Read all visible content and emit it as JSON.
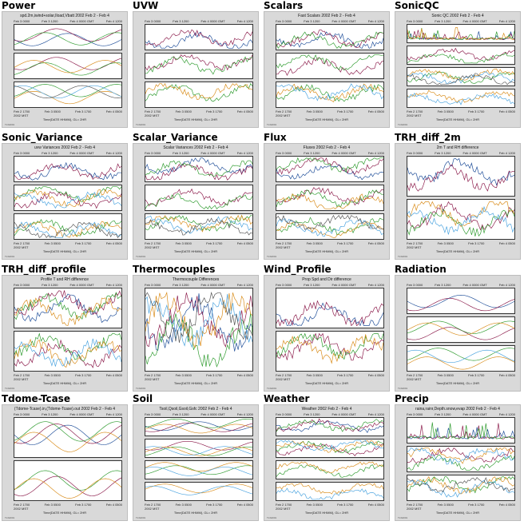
{
  "gallery": {
    "cells": [
      {
        "title": "Power",
        "subtitle": "spd.2m,iwind+solar,Iload,Vbatt 2002 Feb 2 - Feb 4",
        "panels": 3
      },
      {
        "title": "UVW",
        "subtitle": "",
        "panels": 3
      },
      {
        "title": "Scalars",
        "subtitle": "Fast Scalars 2002 Feb 2 - Feb 4",
        "panels": 3
      },
      {
        "title": "SonicQC",
        "subtitle": "Sonic QC 2002 Feb 2 - Feb 4",
        "panels": 4
      },
      {
        "title": "Sonic_Variance",
        "subtitle": "uvw Variances 2002 Feb 2 - Feb 4",
        "panels": 3
      },
      {
        "title": "Scalar_Variance",
        "subtitle": "Scalar Variances 2002 Feb 2 - Feb 4",
        "panels": 3
      },
      {
        "title": "Flux",
        "subtitle": "Fluxes 2002 Feb 2 - Feb 4",
        "panels": 3
      },
      {
        "title": "TRH_diff_2m",
        "subtitle": "2m T and RH difference",
        "panels": 2
      },
      {
        "title": "TRH_diff_profile",
        "subtitle": "Profile T and RH difference",
        "panels": 2
      },
      {
        "title": "Thermocouples",
        "subtitle": "Thermocouple Differences",
        "panels": 1
      },
      {
        "title": "Wind_Profile",
        "subtitle": "Prop Spd and Dir difference",
        "panels": 2
      },
      {
        "title": "Radiation",
        "subtitle": "",
        "panels": 3
      },
      {
        "title": "Tdome-Tcase",
        "subtitle": "(Tdome-Tcase).in,(Tdome-Tcase).out 2002 Feb 2 - Feb 4",
        "panels": 2
      },
      {
        "title": "Soil",
        "subtitle": "Tsoil,Qsoil,Gsoil,Gsfc 2002 Feb 2 - Feb 4",
        "panels": 4
      },
      {
        "title": "Weather",
        "subtitle": "Weather 2002 Feb 2 - Feb 4",
        "panels": 4
      },
      {
        "title": "Precip",
        "subtitle": "raina,rainr,Depth.snow,evap 2002 Feb 2 - Feb 4",
        "panels": 3
      }
    ],
    "xticks": [
      "Feb 3 0000",
      "Feb 3 1200",
      "Feb 4 0000 GMT",
      "Feb 4 1200"
    ],
    "xticks_bottom": [
      "Feb 2 1700",
      "Feb 3 0500",
      "Feb 3 1700",
      "Feb 4 0500"
    ],
    "xaxis_label": "Time(DATE HHMM), GL= 2HR",
    "local_label": "2002 MST",
    "footer_left": "TLS2001",
    "colors": {
      "series": [
        "#1f4e99",
        "#8b1a4a",
        "#2e9b2e",
        "#d98c1a",
        "#4aa3df",
        "#555555"
      ],
      "panel_bg": "#ffffff",
      "plot_bg": "#d9d9d9"
    }
  }
}
